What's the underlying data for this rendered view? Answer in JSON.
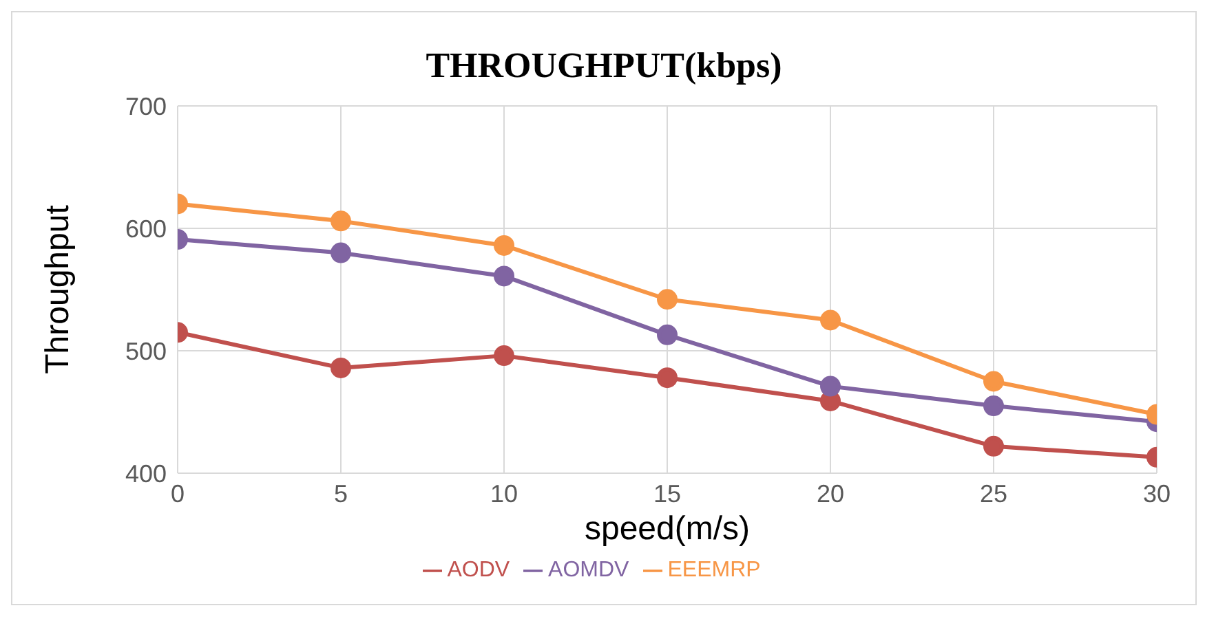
{
  "chart_data": {
    "type": "line",
    "title": "THROUGHPUT(kbps)",
    "xlabel": "speed(m/s)",
    "ylabel": "Throughput",
    "x": [
      0,
      5,
      10,
      15,
      20,
      25,
      30
    ],
    "xlim": [
      0,
      30
    ],
    "xticks": [
      0,
      5,
      10,
      15,
      20,
      25,
      30
    ],
    "ylim": [
      400,
      700
    ],
    "yticks": [
      400,
      500,
      600,
      700
    ],
    "grid": true,
    "legend": "bottom",
    "marker": "circle",
    "line_style": "solid",
    "series": [
      {
        "name": "AODV",
        "color": "#c0504d",
        "values": [
          515,
          486,
          496,
          478,
          459,
          422,
          413
        ]
      },
      {
        "name": "AOMDV",
        "color": "#8064a2",
        "values": [
          591,
          580,
          561,
          513,
          471,
          455,
          442
        ]
      },
      {
        "name": "EEEMRP",
        "color": "#f79646",
        "values": [
          620,
          606,
          586,
          542,
          525,
          475,
          448
        ]
      }
    ]
  }
}
